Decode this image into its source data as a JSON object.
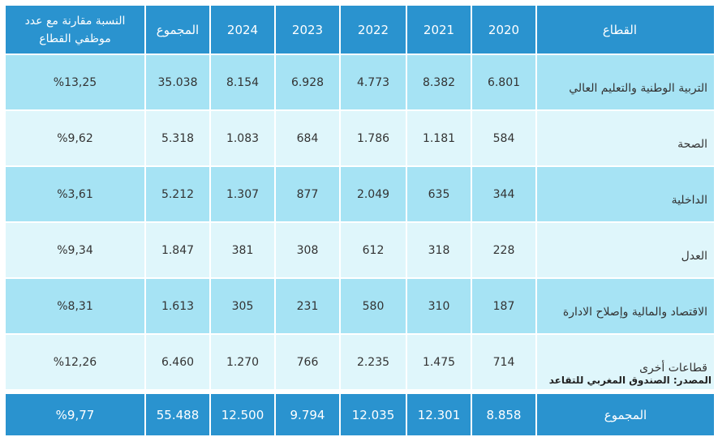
{
  "table": {
    "header": [
      "القطاع",
      "2020",
      "2021",
      "2022",
      "2023",
      "2024",
      "المجموع",
      "النسبة مقارنة مع عدد موظفي القطاع"
    ],
    "rows": [
      [
        "التربية الوطنية والتعليم العالي",
        "6.801",
        "8.382",
        "4.773",
        "6.928",
        "8.154",
        "35.038",
        "%13,25"
      ],
      [
        "الصحة",
        "584",
        "1.181",
        "1.786",
        "684",
        "1.083",
        "5.318",
        "%9,62"
      ],
      [
        "الداخلية",
        "344",
        "635",
        "2.049",
        "877",
        "1.307",
        "5.212",
        "%3,61"
      ],
      [
        "العدل",
        "228",
        "318",
        "612",
        "308",
        "381",
        "1.847",
        "%9,34"
      ],
      [
        "الاقتصاد والمالية وإصلاح الادارة",
        "187",
        "310",
        "580",
        "231",
        "305",
        "1.613",
        "%8,31"
      ],
      [
        "قطاعات أخرى",
        "714",
        "1.475",
        "2.235",
        "766",
        "1.270",
        "6.460",
        "%12,26"
      ]
    ],
    "total": [
      "المجموع",
      "8.858",
      "12.301",
      "12.035",
      "9.794",
      "12.500",
      "55.488",
      "%9,77"
    ]
  },
  "source": "المصدر: الصندوق المغربي للتقاعد"
}
